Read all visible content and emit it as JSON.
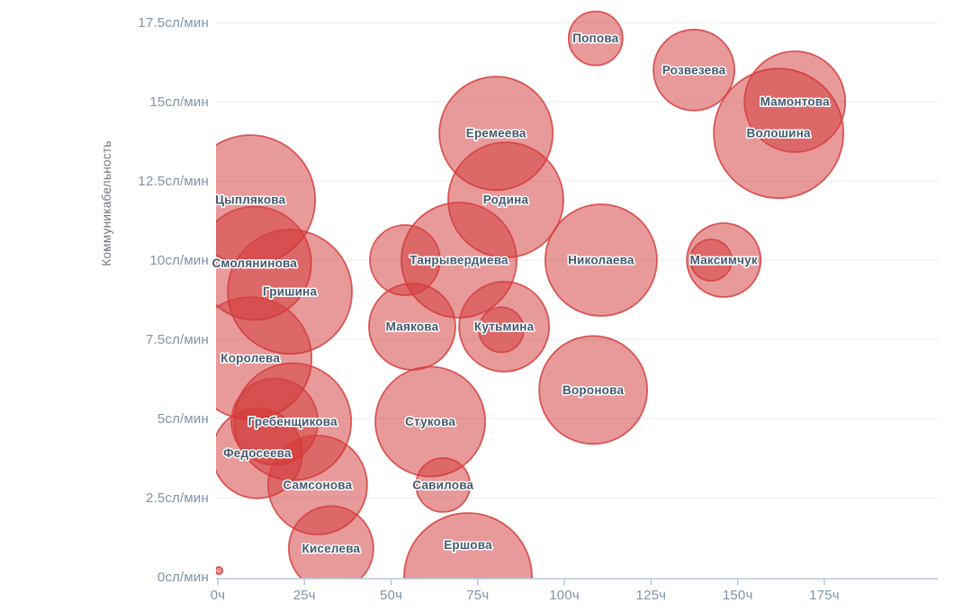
{
  "page": {
    "background": "#ffffff"
  },
  "chart_data": {
    "type": "scatter",
    "subtype": "bubble",
    "title": "",
    "xlabel": "",
    "ylabel": "Коммуникабельность",
    "x_unit": "ч",
    "y_unit": "сл/мин",
    "grid": "horizontal-only",
    "legend": "none",
    "xlim": [
      0,
      207.7
    ],
    "ylim": [
      0,
      17.5
    ],
    "x_ticks": [
      0,
      25,
      50,
      75,
      100,
      125,
      150,
      175
    ],
    "x_tick_labels": [
      "0ч",
      "25ч",
      "50ч",
      "75ч",
      "100ч",
      "125ч",
      "150ч",
      "175ч"
    ],
    "y_ticks": [
      0,
      2.5,
      5,
      7.5,
      10,
      12.5,
      15,
      17.5
    ],
    "y_tick_labels": [
      "0сл/мин",
      "2.5сл/мин",
      "5сл/мин",
      "7.5сл/мин",
      "10сл/мин",
      "12.5сл/мин",
      "15сл/мин",
      "17.5сл/мин"
    ],
    "styles": {
      "bubble_fill": "#d13535",
      "bubble_fill_opacity": 0.5,
      "bubble_stroke": "#d64040",
      "bubble_stroke_opacity": 0.85,
      "grid_color": "#ebebeb",
      "axis_color": "#b5cade",
      "tick_label_color": "#7e93a8",
      "axis_title_color": "#6d7582",
      "bubble_label_color": "#465a70",
      "bubble_label_halo": "#ffffff"
    },
    "points": [
      {
        "name": "Волошина",
        "hours": 161.8,
        "rate": 14.0,
        "r": 72
      },
      {
        "name": "Мамонтова",
        "hours": 166.5,
        "rate": 15.0,
        "r": 56
      },
      {
        "name": "Розвезева",
        "hours": 137.4,
        "rate": 16.0,
        "r": 45
      },
      {
        "name": "Попова",
        "hours": 109.0,
        "rate": 17.0,
        "r": 30
      },
      {
        "name": "Еремеева",
        "hours": 80.3,
        "rate": 14.0,
        "r": 63
      },
      {
        "name": "Родина",
        "hours": 83.1,
        "rate": 11.9,
        "r": 64
      },
      {
        "name": "Цыплякова",
        "hours": 9.4,
        "rate": 11.9,
        "r": 72
      },
      {
        "name": "Смолянинова",
        "hours": 10.6,
        "rate": 9.9,
        "r": 63
      },
      {
        "name": "Гришина",
        "hours": 20.8,
        "rate": 9.0,
        "r": 69
      },
      {
        "name": "Королева",
        "hours": 9.4,
        "rate": 6.9,
        "r": 68
      },
      {
        "name": "Танрывердиева",
        "hours": 69.6,
        "rate": 10.0,
        "r": 64
      },
      {
        "name": "",
        "hours": 54.0,
        "rate": 10.0,
        "r": 39
      },
      {
        "name": "Николаева",
        "hours": 110.6,
        "rate": 10.0,
        "r": 62
      },
      {
        "name": "Максимчук",
        "hours": 146.0,
        "rate": 10.0,
        "r": 41
      },
      {
        "name": "",
        "hours": 142.3,
        "rate": 10.0,
        "r": 23
      },
      {
        "name": "Маякова",
        "hours": 56.1,
        "rate": 7.9,
        "r": 48
      },
      {
        "name": "Кутьмина",
        "hours": 82.6,
        "rate": 7.9,
        "r": 50
      },
      {
        "name": "",
        "hours": 81.8,
        "rate": 7.8,
        "r": 25
      },
      {
        "name": "Воронова",
        "hours": 108.3,
        "rate": 5.9,
        "r": 60
      },
      {
        "name": "Гребенщикова",
        "hours": 21.6,
        "rate": 4.9,
        "r": 65
      },
      {
        "name": "",
        "hours": 16.4,
        "rate": 4.9,
        "r": 48
      },
      {
        "name": "Стукова",
        "hours": 61.3,
        "rate": 4.9,
        "r": 61
      },
      {
        "name": "Федосеева",
        "hours": 11.4,
        "rate": 3.9,
        "r": 50
      },
      {
        "name": "Самсонова",
        "hours": 28.8,
        "rate": 2.9,
        "r": 55
      },
      {
        "name": "Савилова",
        "hours": 65.0,
        "rate": 2.9,
        "r": 30
      },
      {
        "name": "Киселева",
        "hours": 32.7,
        "rate": 0.9,
        "r": 47
      },
      {
        "name": "Ершова",
        "hours": 72.2,
        "rate": 0.0,
        "r": 71
      },
      {
        "name": "",
        "hours": 0.3,
        "rate": 0.2,
        "r": 4
      }
    ]
  }
}
